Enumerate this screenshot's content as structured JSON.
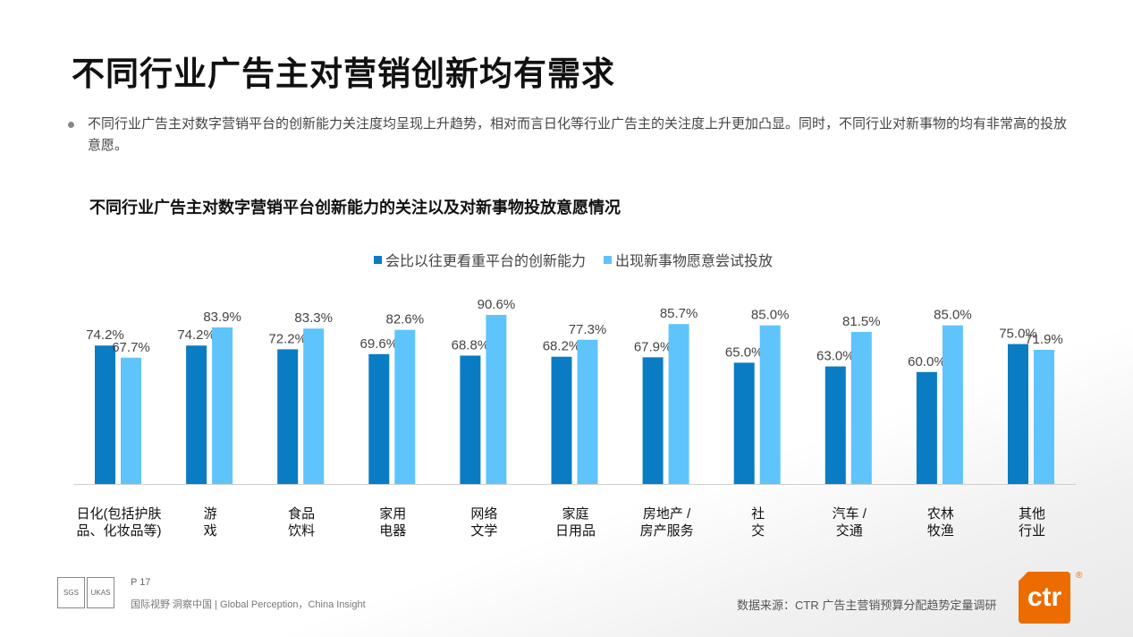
{
  "title": "不同行业广告主对营销创新均有需求",
  "bullet": "不同行业广告主对数字营销平台的创新能力关注度均呈现上升趋势，相对而言日化等行业广告主的关注度上升更加凸显。同时，不同行业对新事物的均有非常高的投放意愿。",
  "chart_data": {
    "type": "bar",
    "title": "不同行业广告主对数字营销平台创新能力的关注以及对新事物投放意愿情况",
    "categories": [
      "日化(包括护肤\n品、化妆品等)",
      "游\n戏",
      "食品\n饮料",
      "家用\n电器",
      "网络\n文学",
      "家庭\n日用品",
      "房地产 /\n房产服务",
      "社\n交",
      "汽车 /\n交通",
      "农林\n牧渔",
      "其他\n行业"
    ],
    "series": [
      {
        "name": "会比以往更看重平台的创新能力",
        "color": "#0a7cc4",
        "values": [
          74.2,
          74.2,
          72.2,
          69.6,
          68.8,
          68.2,
          67.9,
          65.0,
          63.0,
          60.0,
          75.0
        ]
      },
      {
        "name": "出现新事物愿意尝试投放",
        "color": "#5ec4fb",
        "values": [
          67.7,
          83.9,
          83.3,
          82.6,
          90.6,
          77.3,
          85.7,
          85.0,
          81.5,
          85.0,
          71.9
        ]
      }
    ],
    "value_suffix": "%",
    "legend": "top",
    "grid": false
  },
  "footer": {
    "page": "P 17",
    "slogan": "国际视野  洞察中国 |  Global Perception，China Insight",
    "source": "数据来源：CTR 广告主营销预算分配趋势定量调研",
    "logo_text": "ctr",
    "brand_color": "#ec6c00"
  }
}
